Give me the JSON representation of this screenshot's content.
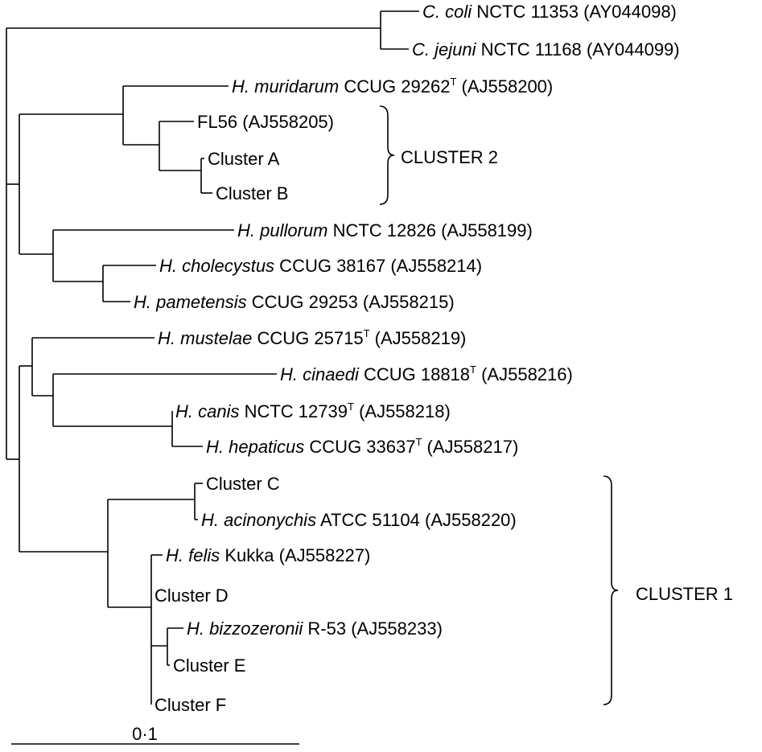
{
  "leaves": [
    {
      "id": "coli",
      "species": "C. coli",
      "rest": " NCTC 11353 (AY044098)",
      "sup": "",
      "acc": ""
    },
    {
      "id": "jejuni",
      "species": "C. jejuni",
      "rest": " NCTC 11168 (AY044099)",
      "sup": "",
      "acc": ""
    },
    {
      "id": "muridarum",
      "species": "H. muridarum",
      "rest": " CCUG 29262",
      "sup": "T",
      "acc": " (AJ558200)"
    },
    {
      "id": "fl56",
      "species": "",
      "rest": "FL56 (AJ558205)",
      "sup": "",
      "acc": ""
    },
    {
      "id": "clusterA",
      "species": "",
      "rest": "Cluster A",
      "sup": "",
      "acc": ""
    },
    {
      "id": "clusterB",
      "species": "",
      "rest": "Cluster B",
      "sup": "",
      "acc": ""
    },
    {
      "id": "pullorum",
      "species": "H. pullorum",
      "rest": " NCTC 12826 (AJ558199)",
      "sup": "",
      "acc": ""
    },
    {
      "id": "cholecystus",
      "species": "H. cholecystus",
      "rest": " CCUG 38167 (AJ558214)",
      "sup": "",
      "acc": ""
    },
    {
      "id": "pametensis",
      "species": "H. pametensis",
      "rest": " CCUG 29253 (AJ558215)",
      "sup": "",
      "acc": ""
    },
    {
      "id": "mustelae",
      "species": "H. mustelae",
      "rest": " CCUG 25715",
      "sup": "T",
      "acc": " (AJ558219)"
    },
    {
      "id": "cinaedi",
      "species": "H. cinaedi",
      "rest": " CCUG 18818",
      "sup": "T",
      "acc": " (AJ558216)"
    },
    {
      "id": "canis",
      "species": "H. canis",
      "rest": " NCTC 12739",
      "sup": "T",
      "acc": " (AJ558218)"
    },
    {
      "id": "hepaticus",
      "species": "H. hepaticus",
      "rest": " CCUG 33637",
      "sup": "T",
      "acc": " (AJ558217)"
    },
    {
      "id": "clusterC",
      "species": "",
      "rest": "Cluster C",
      "sup": "",
      "acc": ""
    },
    {
      "id": "acinonychis",
      "species": "H. acinonychis",
      "rest": " ATCC 51104 (AJ558220)",
      "sup": "",
      "acc": ""
    },
    {
      "id": "felis",
      "species": "H. felis",
      "rest": " Kukka (AJ558227)",
      "sup": "",
      "acc": ""
    },
    {
      "id": "clusterD",
      "species": "",
      "rest": "Cluster D",
      "sup": "",
      "acc": ""
    },
    {
      "id": "bizzozeronii",
      "species": "H. bizzozeronii",
      "rest": " R-53 (AJ558233)",
      "sup": "",
      "acc": ""
    },
    {
      "id": "clusterE",
      "species": "",
      "rest": "Cluster E",
      "sup": "",
      "acc": ""
    },
    {
      "id": "clusterF",
      "species": "",
      "rest": "Cluster F",
      "sup": "",
      "acc": ""
    }
  ],
  "clusters": [
    {
      "id": "cluster2",
      "label": "CLUSTER 2"
    },
    {
      "id": "cluster1",
      "label": "CLUSTER 1"
    }
  ],
  "scale_bar": {
    "label": "0·1"
  }
}
